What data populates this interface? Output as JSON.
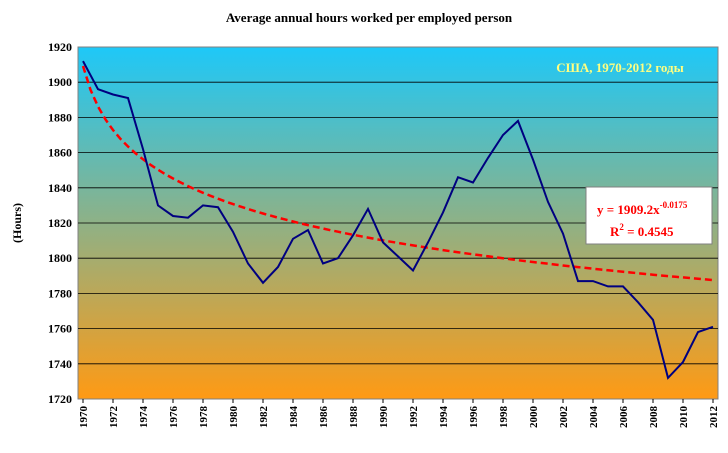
{
  "chart_data": {
    "type": "line",
    "title": "Average annual hours worked per employed person",
    "ylabel": "(Hours)",
    "xlabel": "",
    "annotation": "США, 1970-2012 годы",
    "ylim": [
      1720,
      1920
    ],
    "yticks": [
      1720,
      1740,
      1760,
      1780,
      1800,
      1820,
      1840,
      1860,
      1880,
      1900,
      1920
    ],
    "xlim": [
      1970,
      2012
    ],
    "xticks": [
      1970,
      1972,
      1974,
      1976,
      1978,
      1980,
      1982,
      1984,
      1986,
      1988,
      1990,
      1992,
      1994,
      1996,
      1998,
      2000,
      2002,
      2004,
      2006,
      2008,
      2010,
      2012
    ],
    "grid": true,
    "series": [
      {
        "x": [
          1970,
          1971,
          1972,
          1973,
          1974,
          1975,
          1976,
          1977,
          1978,
          1979,
          1980,
          1981,
          1982,
          1983,
          1984,
          1985,
          1986,
          1987,
          1988,
          1989,
          1990,
          1991,
          1992,
          1993,
          1994,
          1995,
          1996,
          1997,
          1998,
          1999,
          2000,
          2001,
          2002,
          2003,
          2004,
          2005,
          2006,
          2007,
          2008,
          2009,
          2010,
          2011,
          2012
        ],
        "values": [
          1912,
          1896,
          1893,
          1891,
          1862,
          1830,
          1824,
          1823,
          1830,
          1829,
          1815,
          1797,
          1786,
          1795,
          1811,
          1816,
          1797,
          1800,
          1813,
          1828,
          1809,
          1801,
          1793,
          1809,
          1826,
          1846,
          1843,
          1857,
          1870,
          1878,
          1856,
          1832,
          1814,
          1787,
          1787,
          1784,
          1784,
          1775,
          1765,
          1732,
          1741,
          1758,
          1761
        ],
        "color": "#000080",
        "style": "solid"
      }
    ],
    "trendline": {
      "equation_base": "y = 1909.2x",
      "equation_exponent": "-0.0175",
      "r2_base": "R",
      "r2_exponent": "2",
      "r2_value": " = 0.4545",
      "a": 1909.2,
      "b": -0.0175,
      "color": "#ff0000",
      "style": "dashed"
    },
    "background_gradient": [
      "#1ec8f8",
      "#ff9a14"
    ]
  }
}
